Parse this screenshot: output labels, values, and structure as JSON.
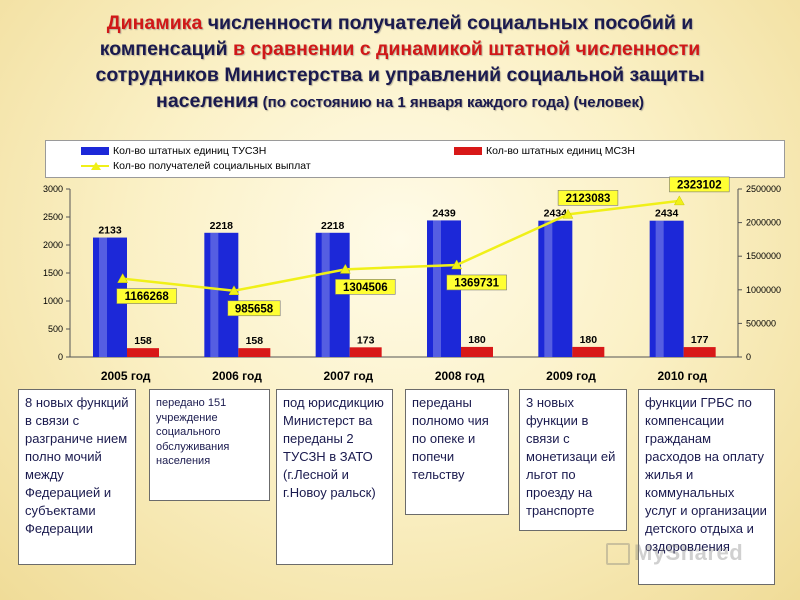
{
  "title": {
    "line1_red": "Динамика",
    "line1_rest": " численности получателей социальных пособий и",
    "line2_blue": "компенсаций",
    "line2_red": " в сравнении с динамикой штатной численности",
    "line3": "сотрудников Министерства и управлений социальной защиты",
    "line4_blue": "населения",
    "line4_small": " (по состоянию на 1 января каждого года) (человек)"
  },
  "colors": {
    "tuszn": "#1c28d8",
    "mszn": "#d81818",
    "recipients": "#f0f018",
    "label_box": "#ffff33"
  },
  "chart_data": {
    "type": "bar",
    "categories": [
      "2005 год",
      "2006 год",
      "2007 год",
      "2008 год",
      "2009 год",
      "2010 год"
    ],
    "series": [
      {
        "name": "Кол-во штатных единиц ТУСЗН",
        "type": "bar",
        "axis": "left",
        "values": [
          2133,
          2218,
          2218,
          2439,
          2434,
          2434
        ]
      },
      {
        "name": "Кол-во штатных единиц МСЗН",
        "type": "bar",
        "axis": "left",
        "values": [
          158,
          158,
          173,
          180,
          180,
          177
        ]
      },
      {
        "name": "Кол-во получателей социальных выплат",
        "type": "line",
        "axis": "right",
        "values": [
          1166268,
          985658,
          1304506,
          1369731,
          2123083,
          2323102
        ]
      }
    ],
    "y_left": {
      "min": 0,
      "max": 3000,
      "ticks": [
        "0",
        "500",
        "1000",
        "1500",
        "2000",
        "2500",
        "3000"
      ]
    },
    "y_right": {
      "min": 0,
      "max": 2500000,
      "ticks": [
        "0",
        "500000",
        "1000000",
        "1500000",
        "2000000",
        "2500000"
      ]
    },
    "legend_position": "top",
    "grid": false
  },
  "notes": [
    "8 новых функций в связи с разграниче нием полно мочий между Федерацией и субъектами Федерации",
    "передано 151 учреждение социального обслуживания населения",
    "под юрисдикцию Министерст ва переданы 2 ТУСЗН в ЗАТО (г.Лесной и г.Новоу ральск)",
    "переданы полномо чия по опеке и попечи тельству",
    "3 новых функции в связи с монетизаци ей льгот по проезду на транспорте",
    "функции ГРБС по компенсации гражданам расходов на оплату жилья и коммунальных услуг и организации детского отдыха и оздоровления"
  ],
  "watermark": "MyShared"
}
